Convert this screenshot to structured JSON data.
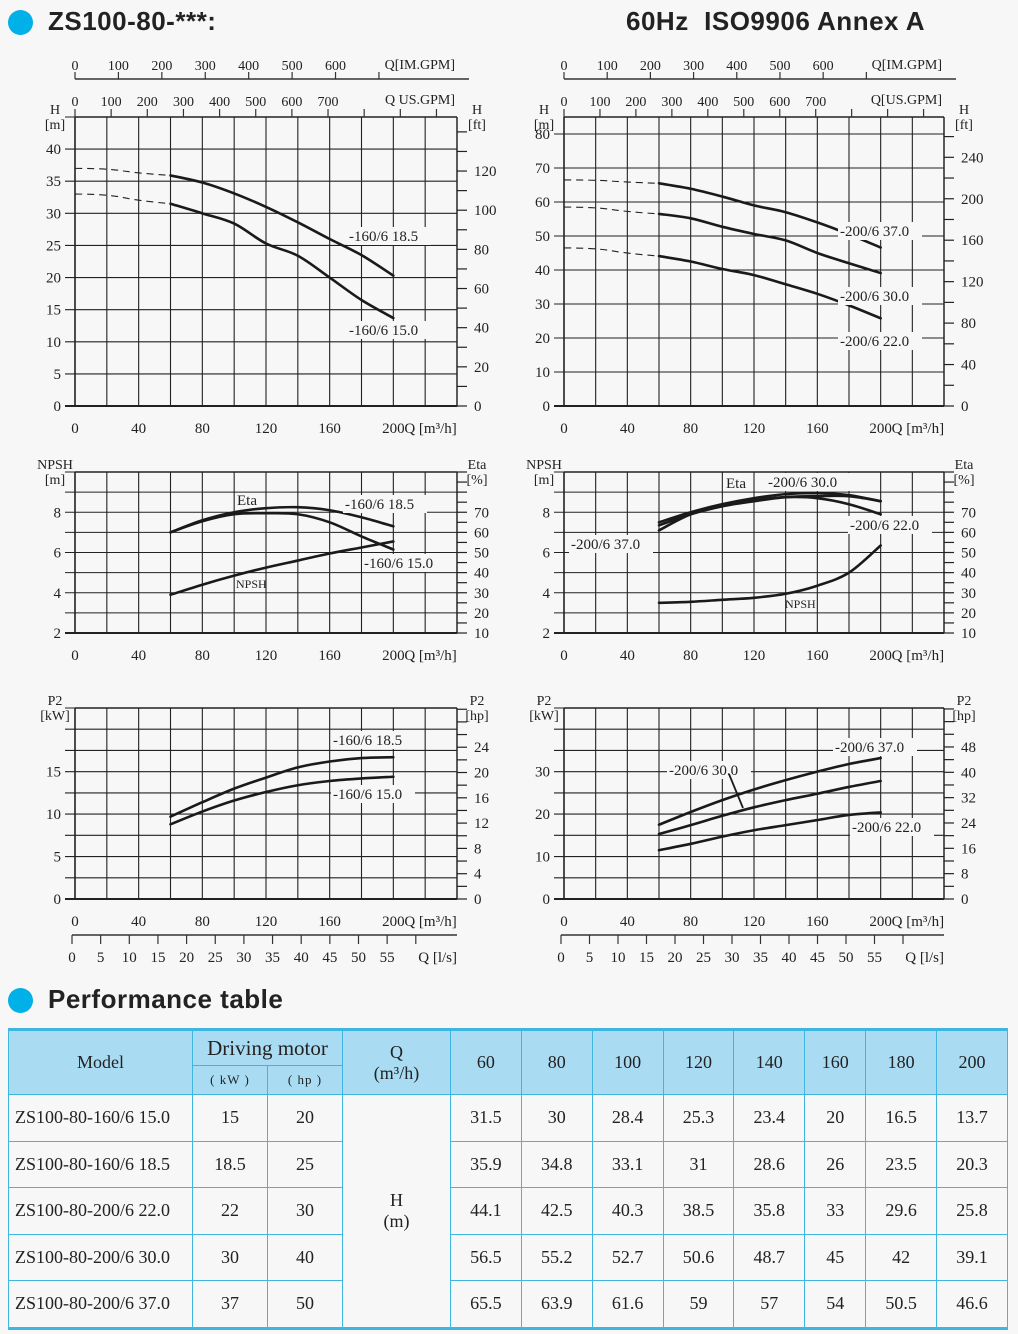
{
  "header": {
    "title": "ZS100-80-***:",
    "subtitle": "60Hz  ISO9906 Annex A",
    "accent_color": "#00b0e8"
  },
  "section2": {
    "title": "Performance table"
  },
  "chart_data": [
    {
      "id": "head-160",
      "type": "line",
      "title": "",
      "xlabel": "Q [m³/h]",
      "ylabel": "H [m]",
      "y2label": "H [ft]",
      "xlim": [
        0,
        240
      ],
      "ylim": [
        0,
        45
      ],
      "xticks": [
        0,
        40,
        80,
        120,
        160,
        200
      ],
      "yticks": [
        0,
        5,
        10,
        15,
        20,
        25,
        30,
        35,
        40
      ],
      "y2lim": [
        0,
        147.6
      ],
      "y2ticks": [
        0,
        20,
        40,
        60,
        80,
        100,
        120
      ],
      "top_axes": [
        {
          "label": "Q[IM.GPM]",
          "ticks": [
            0,
            100,
            200,
            300,
            400,
            500,
            600
          ]
        },
        {
          "label": "Q  US.GPM]",
          "ticks": [
            0,
            100,
            200,
            300,
            400,
            500,
            600,
            700
          ]
        }
      ],
      "grid": true,
      "series": [
        {
          "name": "-160/6  18.5",
          "x": [
            60,
            80,
            100,
            120,
            140,
            160,
            180,
            200
          ],
          "y": [
            35.9,
            34.8,
            33.1,
            31,
            28.6,
            26,
            23.5,
            20.3
          ],
          "dashed_to": [
            0,
            37.0
          ]
        },
        {
          "name": "-160/6  15.0",
          "x": [
            60,
            80,
            100,
            120,
            140,
            160,
            180,
            200
          ],
          "y": [
            31.5,
            30,
            28.4,
            25.3,
            23.4,
            20,
            16.5,
            13.7
          ],
          "dashed_to": [
            0,
            33.0
          ]
        }
      ]
    },
    {
      "id": "head-200",
      "type": "line",
      "xlabel": "Q [m³/h]",
      "ylabel": "H [m]",
      "y2label": "H [ft]",
      "xlim": [
        0,
        240
      ],
      "ylim": [
        0,
        85
      ],
      "xticks": [
        0,
        40,
        80,
        120,
        160,
        200
      ],
      "yticks": [
        0,
        10,
        20,
        30,
        40,
        50,
        60,
        70,
        80
      ],
      "y2lim": [
        0,
        278.9
      ],
      "y2ticks": [
        0,
        40,
        80,
        120,
        160,
        200,
        240
      ],
      "top_axes": [
        {
          "label": "Q[IM.GPM]",
          "ticks": [
            0,
            100,
            200,
            300,
            400,
            500,
            600
          ]
        },
        {
          "label": "Q[US.GPM]",
          "ticks": [
            0,
            100,
            200,
            300,
            400,
            500,
            600,
            700
          ]
        }
      ],
      "grid": true,
      "series": [
        {
          "name": "-200/6  37.0",
          "x": [
            60,
            80,
            100,
            120,
            140,
            160,
            180,
            200
          ],
          "y": [
            65.5,
            63.9,
            61.6,
            59,
            57,
            54,
            50.5,
            46.6
          ],
          "dashed_to": [
            0,
            66.5
          ]
        },
        {
          "name": "-200/6  30.0",
          "x": [
            60,
            80,
            100,
            120,
            140,
            160,
            180,
            200
          ],
          "y": [
            56.5,
            55.2,
            52.7,
            50.6,
            48.7,
            45,
            42,
            39.1
          ],
          "dashed_to": [
            0,
            58.5
          ]
        },
        {
          "name": "-200/6  22.0",
          "x": [
            60,
            80,
            100,
            120,
            140,
            160,
            180,
            200
          ],
          "y": [
            44.1,
            42.5,
            40.3,
            38.5,
            35.8,
            33,
            29.6,
            25.8
          ],
          "dashed_to": [
            0,
            46.5
          ]
        }
      ]
    },
    {
      "id": "npsh-eta-160",
      "type": "line",
      "xlabel": "Q [m³/h]",
      "ylabel": "NPSH [m]",
      "y2label": "Eta [%]",
      "xlim": [
        0,
        240
      ],
      "ylim": [
        2,
        10
      ],
      "xticks": [
        0,
        40,
        80,
        120,
        160,
        200
      ],
      "yticks": [
        2,
        4,
        6,
        8
      ],
      "y2lim": [
        10,
        90
      ],
      "y2ticks": [
        10,
        20,
        30,
        40,
        50,
        60,
        70
      ],
      "grid": true,
      "curve_labels": {
        "eta": "Eta",
        "npsh": "NPSH"
      },
      "series": [
        {
          "name": "-160/6  18.5",
          "axis": "y2",
          "x": [
            60,
            80,
            100,
            120,
            140,
            160,
            180,
            200
          ],
          "y": [
            60,
            66,
            70,
            72,
            72.5,
            71,
            67.5,
            63
          ]
        },
        {
          "name": "-160/6  15.0",
          "axis": "y2",
          "x": [
            60,
            80,
            100,
            120,
            140,
            160,
            180,
            200
          ],
          "y": [
            60,
            65.5,
            69,
            69.5,
            69,
            65,
            58,
            51.5
          ]
        },
        {
          "name": "NPSH",
          "axis": "y",
          "x": [
            60,
            80,
            100,
            120,
            140,
            160,
            180,
            200
          ],
          "y": [
            3.9,
            4.4,
            4.85,
            5.25,
            5.6,
            5.95,
            6.25,
            6.55
          ]
        }
      ]
    },
    {
      "id": "npsh-eta-200",
      "type": "line",
      "xlabel": "Q [m³/h]",
      "ylabel": "NPSH [m]",
      "y2label": "Eta [%]",
      "xlim": [
        0,
        240
      ],
      "ylim": [
        2,
        10
      ],
      "xticks": [
        0,
        40,
        80,
        120,
        160,
        200
      ],
      "yticks": [
        2,
        4,
        6,
        8
      ],
      "y2lim": [
        10,
        90
      ],
      "y2ticks": [
        10,
        20,
        30,
        40,
        50,
        60,
        70
      ],
      "grid": true,
      "curve_labels": {
        "eta": "Eta",
        "npsh": "NPSH"
      },
      "series": [
        {
          "name": "-200/6  30.0",
          "axis": "y2",
          "x": [
            60,
            80,
            100,
            120,
            140,
            160,
            180,
            200
          ],
          "y": [
            65,
            70,
            74,
            77,
            79,
            79.5,
            78.5,
            75.5
          ]
        },
        {
          "name": "-200/6  37.0",
          "axis": "y2",
          "x": [
            60,
            80,
            100,
            120,
            140,
            160,
            180,
            200
          ],
          "y": [
            61,
            69,
            73,
            75.5,
            77.5,
            78,
            78,
            75.5
          ]
        },
        {
          "name": "-200/6  22.0",
          "axis": "y2",
          "x": [
            60,
            80,
            100,
            120,
            140,
            160,
            180,
            200
          ],
          "y": [
            63.5,
            69,
            73,
            76,
            77.5,
            77,
            74,
            69
          ]
        },
        {
          "name": "NPSH",
          "axis": "y",
          "x": [
            60,
            80,
            100,
            120,
            140,
            160,
            180,
            200
          ],
          "y": [
            3.5,
            3.55,
            3.65,
            3.75,
            3.95,
            4.35,
            5.0,
            6.35
          ]
        }
      ]
    },
    {
      "id": "power-160",
      "type": "line",
      "xlabel": "Q [m³/h]",
      "x2label": "Q [l/s]",
      "x2ticks": [
        0,
        5,
        10,
        15,
        20,
        25,
        30,
        35,
        40,
        45,
        50,
        55
      ],
      "ylabel": "P2 [kW]",
      "y2label": "P2 [hp]",
      "xlim": [
        0,
        240
      ],
      "ylim": [
        0,
        22.5
      ],
      "xticks": [
        0,
        40,
        80,
        120,
        160,
        200
      ],
      "yticks": [
        0,
        5,
        10,
        15
      ],
      "y2lim": [
        0,
        30.2
      ],
      "y2ticks": [
        0,
        4,
        8,
        12,
        16,
        20,
        24
      ],
      "grid": true,
      "series": [
        {
          "name": "-160/6  18.5",
          "x": [
            60,
            80,
            100,
            120,
            140,
            160,
            180,
            200
          ],
          "y": [
            9.7,
            11.4,
            13.0,
            14.3,
            15.5,
            16.2,
            16.6,
            16.7
          ]
        },
        {
          "name": "-160/6  15.0",
          "x": [
            60,
            80,
            100,
            120,
            140,
            160,
            180,
            200
          ],
          "y": [
            8.8,
            10.3,
            11.6,
            12.6,
            13.4,
            13.9,
            14.2,
            14.4
          ]
        }
      ]
    },
    {
      "id": "power-200",
      "type": "line",
      "xlabel": "Q [m³/h]",
      "x2label": "Q [l/s]",
      "x2ticks": [
        0,
        5,
        10,
        15,
        20,
        25,
        30,
        35,
        40,
        45,
        50,
        55
      ],
      "ylabel": "P2 [kW]",
      "y2label": "P2 [hp]",
      "xlim": [
        0,
        240
      ],
      "ylim": [
        0,
        45
      ],
      "xticks": [
        0,
        40,
        80,
        120,
        160,
        200
      ],
      "yticks": [
        0,
        10,
        20,
        30
      ],
      "y2lim": [
        0,
        60.3
      ],
      "y2ticks": [
        0,
        8,
        16,
        24,
        32,
        40,
        48
      ],
      "grid": true,
      "series": [
        {
          "name": "-200/6  37.0",
          "x": [
            60,
            80,
            100,
            120,
            140,
            160,
            180,
            200
          ],
          "y": [
            17.5,
            20.5,
            23.3,
            25.8,
            28,
            30,
            31.8,
            33.2
          ]
        },
        {
          "name": "-200/6  30.0",
          "x": [
            60,
            80,
            100,
            120,
            140,
            160,
            180,
            200
          ],
          "y": [
            15.3,
            17.4,
            19.6,
            21.6,
            23.3,
            24.8,
            26.4,
            27.8
          ]
        },
        {
          "name": "-200/6  22.0",
          "x": [
            60,
            80,
            100,
            120,
            140,
            160,
            180,
            200
          ],
          "y": [
            11.5,
            13.0,
            14.7,
            16.2,
            17.4,
            18.6,
            19.8,
            20.4
          ]
        }
      ]
    }
  ],
  "table": {
    "headers": {
      "model": "Model",
      "motor": "Driving motor",
      "kw": "( kW )",
      "hp": "( hp )",
      "q": "Q",
      "q_unit": "(m³/h)",
      "h": "H",
      "h_unit": "(m)",
      "flows": [
        "60",
        "80",
        "100",
        "120",
        "140",
        "160",
        "180",
        "200"
      ]
    },
    "rows": [
      {
        "model": "ZS100-80-160/6  15.0",
        "kw": "15",
        "hp": "20",
        "heads": [
          "31.5",
          "30",
          "28.4",
          "25.3",
          "23.4",
          "20",
          "16.5",
          "13.7"
        ]
      },
      {
        "model": "ZS100-80-160/6  18.5",
        "kw": "18.5",
        "hp": "25",
        "heads": [
          "35.9",
          "34.8",
          "33.1",
          "31",
          "28.6",
          "26",
          "23.5",
          "20.3"
        ]
      },
      {
        "model": "ZS100-80-200/6  22.0",
        "kw": "22",
        "hp": "30",
        "heads": [
          "44.1",
          "42.5",
          "40.3",
          "38.5",
          "35.8",
          "33",
          "29.6",
          "25.8"
        ]
      },
      {
        "model": "ZS100-80-200/6  30.0",
        "kw": "30",
        "hp": "40",
        "heads": [
          "56.5",
          "55.2",
          "52.7",
          "50.6",
          "48.7",
          "45",
          "42",
          "39.1"
        ]
      },
      {
        "model": "ZS100-80-200/6  37.0",
        "kw": "37",
        "hp": "50",
        "heads": [
          "65.5",
          "63.9",
          "61.6",
          "59",
          "57",
          "54",
          "50.5",
          "46.6"
        ]
      }
    ]
  }
}
